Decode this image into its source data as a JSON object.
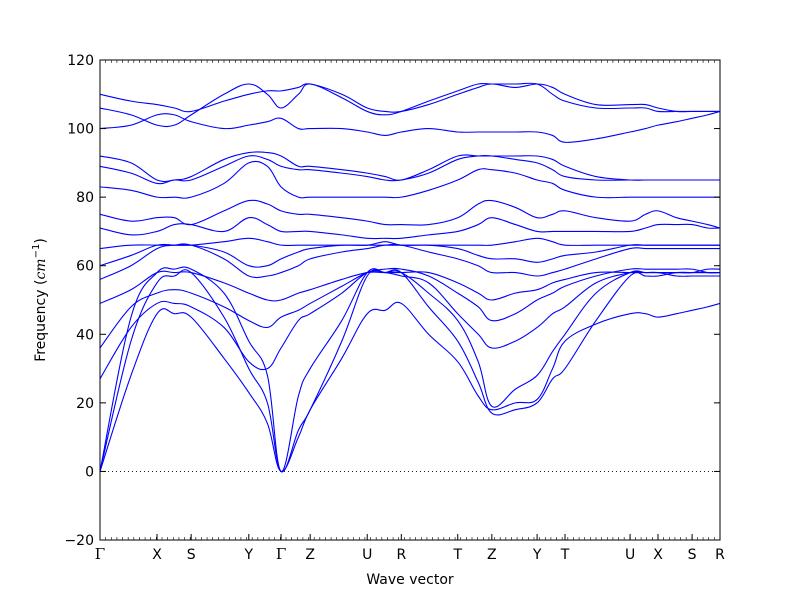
{
  "chart_data": {
    "type": "line",
    "title": "",
    "xlabel": "Wave vector",
    "ylabel_text": "Frequency (",
    "ylabel_unit_base": "cm",
    "ylabel_unit_exp": "−1",
    "ylabel_close": ")",
    "ylim": [
      -20,
      120
    ],
    "y_ticks": [
      "−20",
      "0",
      "20",
      "40",
      "60",
      "80",
      "100",
      "120"
    ],
    "y_tick_values": [
      -20,
      0,
      20,
      40,
      60,
      80,
      100,
      120
    ],
    "xlim": [
      0,
      1
    ],
    "zero_line": true,
    "grid": false,
    "line_color": "#0000ff",
    "symmetry_points": [
      {
        "label": "Γ",
        "x": 0.0
      },
      {
        "label": "X",
        "x": 0.092
      },
      {
        "label": "S",
        "x": 0.147
      },
      {
        "label": "Y",
        "x": 0.24
      },
      {
        "label": "Γ",
        "x": 0.292
      },
      {
        "label": "Z",
        "x": 0.339
      },
      {
        "label": "U",
        "x": 0.431
      },
      {
        "label": "R",
        "x": 0.486
      },
      {
        "label": "T",
        "x": 0.577
      },
      {
        "label": "Z",
        "x": 0.632
      },
      {
        "label": "Y",
        "x": 0.705
      },
      {
        "label": "T",
        "x": 0.75
      },
      {
        "label": "U",
        "x": 0.855
      },
      {
        "label": "X",
        "x": 0.9
      },
      {
        "label": "S",
        "x": 0.955
      },
      {
        "label": "R",
        "x": 1.0
      }
    ],
    "series": [
      {
        "x": [
          0,
          0.05,
          0.092,
          0.12,
          0.147,
          0.2,
          0.24,
          0.27,
          0.292,
          0.32,
          0.339,
          0.39,
          0.431,
          0.46,
          0.486,
          0.53,
          0.577,
          0.61,
          0.632,
          0.67,
          0.705,
          0.73,
          0.75,
          0.8,
          0.855,
          0.88,
          0.9,
          0.93,
          0.955,
          0.98,
          1.0
        ],
        "y": [
          0,
          28,
          46,
          46,
          45,
          33,
          23,
          14,
          0,
          10,
          18,
          33,
          46,
          47,
          49,
          40,
          32,
          22,
          18,
          20,
          21,
          30,
          38,
          43,
          46,
          46,
          45,
          46,
          47,
          48,
          49
        ]
      },
      {
        "x": [
          0,
          0.05,
          0.092,
          0.12,
          0.147,
          0.2,
          0.24,
          0.27,
          0.292,
          0.32,
          0.339,
          0.39,
          0.431,
          0.46,
          0.486,
          0.53,
          0.577,
          0.61,
          0.632,
          0.67,
          0.705,
          0.73,
          0.75,
          0.8,
          0.855,
          0.88,
          0.9,
          0.93,
          0.955,
          0.98,
          1.0
        ],
        "y": [
          0,
          38,
          55,
          57,
          58,
          45,
          30,
          20,
          0,
          12,
          18,
          38,
          57,
          58,
          58,
          48,
          38,
          26,
          17,
          18,
          20,
          27,
          30,
          44,
          57,
          57,
          57,
          58,
          58,
          58,
          58
        ]
      },
      {
        "x": [
          0,
          0.05,
          0.092,
          0.12,
          0.147,
          0.2,
          0.24,
          0.27,
          0.292,
          0.32,
          0.339,
          0.39,
          0.431,
          0.46,
          0.486,
          0.53,
          0.577,
          0.61,
          0.632,
          0.67,
          0.705,
          0.73,
          0.75,
          0.8,
          0.855,
          0.88,
          0.9,
          0.93,
          0.955,
          0.98,
          1.0
        ],
        "y": [
          0,
          45,
          58,
          59,
          59,
          52,
          38,
          28,
          0,
          22,
          30,
          44,
          58,
          58,
          58,
          52,
          44,
          32,
          19,
          24,
          28,
          35,
          40,
          52,
          58,
          58,
          58,
          58,
          58,
          59,
          59
        ]
      },
      {
        "x": [
          0,
          0.05,
          0.092,
          0.12,
          0.147,
          0.2,
          0.24,
          0.27,
          0.292,
          0.32,
          0.339,
          0.39,
          0.431,
          0.46,
          0.486,
          0.53,
          0.577,
          0.61,
          0.632,
          0.67,
          0.705,
          0.73,
          0.75,
          0.8,
          0.855,
          0.88,
          0.9,
          0.93,
          0.955,
          0.98,
          1.0
        ],
        "y": [
          27,
          42,
          49,
          49,
          48,
          42,
          32,
          30,
          36,
          44,
          46,
          52,
          58,
          58,
          57,
          55,
          46,
          40,
          36,
          38,
          42,
          46,
          48,
          55,
          58,
          58,
          58,
          57,
          57,
          57,
          57
        ]
      },
      {
        "x": [
          0,
          0.05,
          0.092,
          0.12,
          0.147,
          0.2,
          0.24,
          0.27,
          0.292,
          0.32,
          0.339,
          0.39,
          0.431,
          0.46,
          0.486,
          0.53,
          0.577,
          0.61,
          0.632,
          0.67,
          0.705,
          0.73,
          0.75,
          0.8,
          0.855,
          0.88,
          0.9,
          0.93,
          0.955,
          0.98,
          1.0
        ],
        "y": [
          36,
          48,
          52,
          53,
          52,
          48,
          44,
          42,
          45,
          47,
          49,
          54,
          58,
          59,
          59,
          57,
          52,
          48,
          44,
          46,
          50,
          52,
          54,
          57,
          59,
          59,
          59,
          59,
          59,
          58,
          58
        ]
      },
      {
        "x": [
          0,
          0.05,
          0.092,
          0.12,
          0.147,
          0.2,
          0.24,
          0.27,
          0.292,
          0.32,
          0.339,
          0.39,
          0.431,
          0.46,
          0.486,
          0.53,
          0.577,
          0.61,
          0.632,
          0.67,
          0.705,
          0.73,
          0.75,
          0.8,
          0.855,
          0.88,
          0.9,
          0.93,
          0.955,
          0.98,
          1.0
        ],
        "y": [
          49,
          53,
          58,
          58,
          58,
          55,
          52,
          50,
          50,
          52,
          53,
          56,
          58,
          58,
          58,
          58,
          55,
          52,
          50,
          52,
          53,
          55,
          56,
          58,
          58,
          58,
          58,
          58,
          58,
          58,
          58
        ]
      },
      {
        "x": [
          0,
          0.05,
          0.092,
          0.12,
          0.147,
          0.2,
          0.24,
          0.27,
          0.292,
          0.32,
          0.339,
          0.39,
          0.431,
          0.46,
          0.486,
          0.53,
          0.577,
          0.61,
          0.632,
          0.67,
          0.705,
          0.73,
          0.75,
          0.8,
          0.855,
          0.88,
          0.9,
          0.93,
          0.955,
          0.98,
          1.0
        ],
        "y": [
          56,
          60,
          65,
          66,
          66,
          62,
          57,
          57,
          58,
          60,
          62,
          64,
          65,
          66,
          66,
          64,
          62,
          60,
          58,
          58,
          57,
          58,
          59,
          62,
          65,
          65,
          65,
          65,
          65,
          65,
          65
        ]
      },
      {
        "x": [
          0,
          0.05,
          0.092,
          0.12,
          0.147,
          0.2,
          0.24,
          0.27,
          0.292,
          0.32,
          0.339,
          0.39,
          0.431,
          0.46,
          0.486,
          0.53,
          0.577,
          0.61,
          0.632,
          0.67,
          0.705,
          0.73,
          0.75,
          0.8,
          0.855,
          0.88,
          0.9,
          0.93,
          0.955,
          0.98,
          1.0
        ],
        "y": [
          60,
          63,
          66,
          66,
          66,
          64,
          60,
          60,
          62,
          64,
          65,
          66,
          66,
          67,
          66,
          66,
          65,
          63,
          62,
          62,
          61,
          62,
          63,
          64,
          66,
          66,
          66,
          66,
          66,
          66,
          66
        ]
      },
      {
        "x": [
          0,
          0.05,
          0.092,
          0.12,
          0.147,
          0.2,
          0.24,
          0.27,
          0.292,
          0.32,
          0.339,
          0.39,
          0.431,
          0.46,
          0.486,
          0.53,
          0.577,
          0.61,
          0.632,
          0.67,
          0.705,
          0.73,
          0.75,
          0.8,
          0.855,
          0.88,
          0.9,
          0.93,
          0.955,
          0.98,
          1.0
        ],
        "y": [
          65,
          66,
          66,
          66,
          66,
          67,
          68,
          67,
          66,
          66,
          66,
          66,
          66,
          66,
          66,
          66,
          66,
          66,
          66,
          67,
          68,
          67,
          66,
          66,
          66,
          66,
          66,
          66,
          66,
          66,
          66
        ]
      },
      {
        "x": [
          0,
          0.05,
          0.092,
          0.12,
          0.147,
          0.2,
          0.24,
          0.27,
          0.292,
          0.32,
          0.339,
          0.39,
          0.431,
          0.46,
          0.486,
          0.53,
          0.577,
          0.61,
          0.632,
          0.67,
          0.705,
          0.73,
          0.75,
          0.8,
          0.855,
          0.88,
          0.9,
          0.93,
          0.955,
          0.98,
          1.0
        ],
        "y": [
          71,
          69,
          70,
          72,
          72,
          70,
          74,
          72,
          70,
          70,
          70,
          69,
          68,
          68,
          68,
          69,
          70,
          72,
          74,
          72,
          70,
          70,
          70,
          70,
          70,
          71,
          72,
          72,
          72,
          71,
          71
        ]
      },
      {
        "x": [
          0,
          0.05,
          0.092,
          0.12,
          0.147,
          0.2,
          0.24,
          0.27,
          0.292,
          0.32,
          0.339,
          0.39,
          0.431,
          0.46,
          0.486,
          0.53,
          0.577,
          0.61,
          0.632,
          0.67,
          0.705,
          0.73,
          0.75,
          0.8,
          0.855,
          0.88,
          0.9,
          0.93,
          0.955,
          0.98,
          1.0
        ],
        "y": [
          75,
          73,
          74,
          74,
          72,
          76,
          79,
          78,
          76,
          75,
          75,
          74,
          73,
          72,
          72,
          72,
          74,
          78,
          79,
          77,
          74,
          75,
          76,
          74,
          73,
          75,
          76,
          74,
          73,
          72,
          71
        ]
      },
      {
        "x": [
          0,
          0.05,
          0.092,
          0.12,
          0.147,
          0.2,
          0.24,
          0.27,
          0.292,
          0.32,
          0.339,
          0.39,
          0.431,
          0.46,
          0.486,
          0.53,
          0.577,
          0.61,
          0.632,
          0.67,
          0.705,
          0.73,
          0.75,
          0.8,
          0.855,
          0.88,
          0.9,
          0.93,
          0.955,
          0.98,
          1.0
        ],
        "y": [
          83,
          82,
          80,
          80,
          80,
          84,
          90,
          89,
          83,
          80,
          80,
          80,
          80,
          80,
          80,
          82,
          85,
          88,
          88,
          87,
          85,
          84,
          82,
          80,
          80,
          80,
          80,
          80,
          80,
          80,
          80
        ]
      },
      {
        "x": [
          0,
          0.05,
          0.092,
          0.12,
          0.147,
          0.2,
          0.24,
          0.27,
          0.292,
          0.32,
          0.339,
          0.39,
          0.431,
          0.46,
          0.486,
          0.53,
          0.577,
          0.61,
          0.632,
          0.67,
          0.705,
          0.73,
          0.75,
          0.8,
          0.855,
          0.88,
          0.9,
          0.93,
          0.955,
          0.98,
          1.0
        ],
        "y": [
          89,
          87,
          84,
          85,
          85,
          89,
          92,
          91,
          89,
          88,
          88,
          87,
          86,
          85,
          85,
          87,
          91,
          92,
          92,
          91,
          90,
          88,
          86,
          85,
          85,
          85,
          85,
          85,
          85,
          85,
          85
        ]
      },
      {
        "x": [
          0,
          0.05,
          0.092,
          0.12,
          0.147,
          0.2,
          0.24,
          0.27,
          0.292,
          0.32,
          0.339,
          0.39,
          0.431,
          0.46,
          0.486,
          0.53,
          0.577,
          0.61,
          0.632,
          0.67,
          0.705,
          0.73,
          0.75,
          0.8,
          0.855,
          0.88,
          0.9,
          0.93,
          0.955,
          0.98,
          1.0
        ],
        "y": [
          92,
          90,
          85,
          85,
          86,
          91,
          93,
          93,
          92,
          89,
          89,
          88,
          87,
          86,
          85,
          88,
          92,
          92,
          92,
          92,
          92,
          91,
          89,
          86,
          85,
          85,
          85,
          85,
          85,
          85,
          85
        ]
      },
      {
        "x": [
          0,
          0.05,
          0.092,
          0.12,
          0.147,
          0.2,
          0.24,
          0.27,
          0.292,
          0.32,
          0.339,
          0.39,
          0.431,
          0.46,
          0.486,
          0.53,
          0.577,
          0.61,
          0.632,
          0.67,
          0.705,
          0.73,
          0.75,
          0.8,
          0.855,
          0.88,
          0.9,
          0.93,
          0.955,
          0.98,
          1.0
        ],
        "y": [
          100,
          101,
          104,
          104,
          102,
          100,
          101,
          102,
          103,
          100,
          100,
          100,
          99,
          98,
          99,
          100,
          99,
          99,
          99,
          99,
          99,
          98,
          96,
          97,
          99,
          100,
          101,
          102,
          103,
          104,
          105
        ]
      },
      {
        "x": [
          0,
          0.05,
          0.092,
          0.12,
          0.147,
          0.2,
          0.24,
          0.27,
          0.292,
          0.32,
          0.339,
          0.39,
          0.431,
          0.46,
          0.486,
          0.53,
          0.577,
          0.61,
          0.632,
          0.67,
          0.705,
          0.73,
          0.75,
          0.8,
          0.855,
          0.88,
          0.9,
          0.93,
          0.955,
          0.98,
          1.0
        ],
        "y": [
          106,
          104,
          101,
          101,
          104,
          110,
          113,
          110,
          106,
          110,
          113,
          109,
          105,
          104,
          105,
          108,
          111,
          113,
          113,
          113,
          113,
          110,
          108,
          106,
          106,
          106,
          105,
          105,
          105,
          105,
          105
        ]
      },
      {
        "x": [
          0,
          0.05,
          0.092,
          0.12,
          0.147,
          0.2,
          0.24,
          0.27,
          0.292,
          0.32,
          0.339,
          0.39,
          0.431,
          0.46,
          0.486,
          0.53,
          0.577,
          0.61,
          0.632,
          0.67,
          0.705,
          0.73,
          0.75,
          0.8,
          0.855,
          0.88,
          0.9,
          0.93,
          0.955,
          0.98,
          1.0
        ],
        "y": [
          110,
          108,
          107,
          106,
          105,
          108,
          110,
          111,
          111,
          112,
          113,
          110,
          106,
          105,
          105,
          107,
          110,
          112,
          113,
          112,
          113,
          112,
          110,
          107,
          107,
          107,
          106,
          105,
          105,
          105,
          105
        ]
      }
    ]
  }
}
